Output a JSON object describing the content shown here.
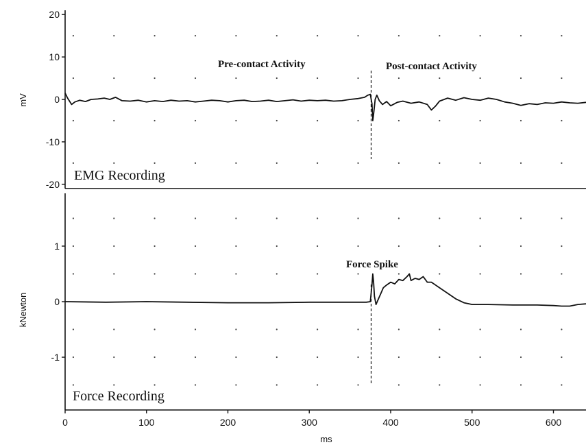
{
  "chart_data": [
    {
      "type": "line",
      "title": "",
      "xlabel": "",
      "ylabel": "mV",
      "xlim": [
        0,
        640
      ],
      "ylim": [
        -21,
        21
      ],
      "yticks": [
        20,
        10,
        0,
        -10,
        -20
      ],
      "grid": "dotted",
      "panel_label": "EMG Recording",
      "annotations": [
        "Pre-contact Activity",
        "Post-contact Activity"
      ],
      "event_marker_x": 376,
      "series": [
        {
          "x": [
            0,
            3,
            8,
            12,
            18,
            25,
            32,
            40,
            48,
            55,
            62,
            70,
            80,
            90,
            100,
            110,
            120,
            130,
            140,
            150,
            160,
            170,
            180,
            190,
            200,
            210,
            220,
            230,
            240,
            250,
            260,
            270,
            280,
            290,
            300,
            310,
            320,
            330,
            340,
            350,
            360,
            368,
            372,
            375,
            377,
            378,
            379,
            381,
            383,
            386,
            390,
            395,
            400,
            408,
            415,
            425,
            435,
            445,
            450,
            455,
            460,
            470,
            480,
            490,
            500,
            510,
            520,
            530,
            540,
            550,
            560,
            570,
            580,
            590,
            600,
            610,
            620,
            630,
            640
          ],
          "y": [
            1.5,
            0.3,
            -1.2,
            -0.6,
            -0.2,
            -0.5,
            0.0,
            0.1,
            0.3,
            0.0,
            0.5,
            -0.3,
            -0.4,
            -0.2,
            -0.6,
            -0.3,
            -0.5,
            -0.2,
            -0.4,
            -0.3,
            -0.6,
            -0.4,
            -0.2,
            -0.3,
            -0.6,
            -0.3,
            -0.2,
            -0.5,
            -0.4,
            -0.2,
            -0.5,
            -0.3,
            -0.1,
            -0.4,
            -0.2,
            -0.3,
            -0.2,
            -0.4,
            -0.3,
            0.0,
            0.2,
            0.5,
            1.0,
            1.2,
            -1.0,
            -5.0,
            -3.5,
            0.0,
            1.0,
            -0.3,
            -1.2,
            -0.5,
            -1.5,
            -0.7,
            -0.4,
            -0.9,
            -0.6,
            -1.2,
            -2.5,
            -1.6,
            -0.4,
            0.3,
            -0.2,
            0.4,
            0.0,
            -0.2,
            0.3,
            0.0,
            -0.6,
            -0.9,
            -1.4,
            -1.0,
            -1.2,
            -0.8,
            -0.9,
            -0.6,
            -0.8,
            -0.9,
            -0.7
          ]
        }
      ]
    },
    {
      "type": "line",
      "title": "",
      "xlabel": "ms",
      "ylabel": "kNewton",
      "xlim": [
        0,
        640
      ],
      "ylim": [
        -1.95,
        1.95
      ],
      "xticks": [
        0,
        100,
        200,
        300,
        400,
        500,
        600
      ],
      "yticks": [
        1,
        0,
        -1
      ],
      "grid": "dotted",
      "panel_label": "Force Recording",
      "annotations": [
        "Force Spike"
      ],
      "event_marker_x": 376,
      "series": [
        {
          "x": [
            0,
            50,
            100,
            150,
            200,
            250,
            300,
            350,
            370,
            375,
            377,
            378,
            379,
            380,
            382,
            385,
            388,
            391,
            395,
            400,
            405,
            410,
            415,
            420,
            423,
            425,
            430,
            435,
            440,
            445,
            450,
            460,
            470,
            480,
            490,
            500,
            520,
            550,
            580,
            600,
            610,
            620,
            630,
            640
          ],
          "y": [
            0.0,
            -0.01,
            0.0,
            -0.01,
            -0.02,
            -0.02,
            -0.01,
            -0.01,
            -0.01,
            0.0,
            0.3,
            0.5,
            0.35,
            0.1,
            -0.05,
            0.05,
            0.15,
            0.25,
            0.3,
            0.35,
            0.32,
            0.4,
            0.38,
            0.45,
            0.5,
            0.38,
            0.42,
            0.4,
            0.45,
            0.35,
            0.35,
            0.25,
            0.15,
            0.05,
            -0.02,
            -0.05,
            -0.05,
            -0.06,
            -0.06,
            -0.07,
            -0.08,
            -0.08,
            -0.05,
            -0.04
          ]
        }
      ]
    }
  ]
}
